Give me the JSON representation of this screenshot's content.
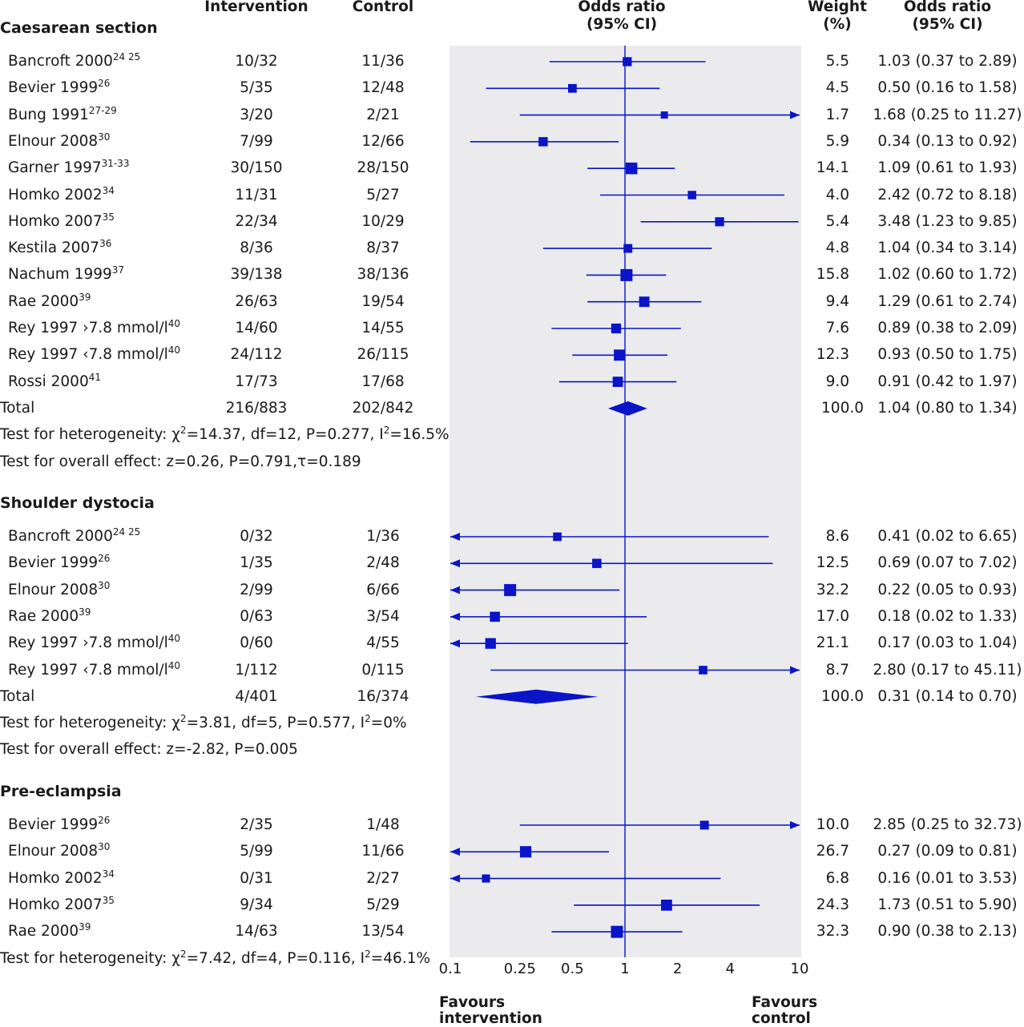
{
  "headers": {
    "intervention": "Intervention",
    "control": "Control",
    "or_line1": "Odds ratio",
    "or_line2": "(95% CI)",
    "weight_line1": "Weight",
    "weight_line2": "(%)",
    "or2_line1": "Odds ratio",
    "or2_line2": "(95% CI)"
  },
  "footer": {
    "favours_left_1": "Favours",
    "favours_left_2": "intervention",
    "favours_right_1": "Favours",
    "favours_right_2": "control"
  },
  "chart_data": {
    "type": "forest",
    "x_scale": "log",
    "xlim": [
      0.1,
      10
    ],
    "x_ticks": [
      {
        "value": 0.1,
        "label": "0.1"
      },
      {
        "value": 0.25,
        "label": "0.25"
      },
      {
        "value": 0.5,
        "label": "0.5"
      },
      {
        "value": 1,
        "label": "1"
      },
      {
        "value": 2,
        "label": "2"
      },
      {
        "value": 4,
        "label": "4"
      },
      {
        "value": 10,
        "label": "10"
      }
    ],
    "reference_line": 1,
    "colors": {
      "marker": "#0a14c8",
      "panel": "#ebebee",
      "text": "#1a1a1a"
    },
    "sections": [
      {
        "title": "Caesarean section",
        "studies": [
          {
            "name": "Bancroft 2000",
            "ref": "24 25",
            "intervention": "10/32",
            "control": "11/36",
            "or": 1.03,
            "lo": 0.37,
            "hi": 2.89,
            "weight": "5.5",
            "ci_text": "1.03 (0.37 to 2.89)"
          },
          {
            "name": "Bevier 1999",
            "ref": "26",
            "intervention": "5/35",
            "control": "12/48",
            "or": 0.5,
            "lo": 0.16,
            "hi": 1.58,
            "weight": "4.5",
            "ci_text": "0.50 (0.16 to 1.58)"
          },
          {
            "name": "Bung 1991",
            "ref": "27-29",
            "intervention": "3/20",
            "control": "2/21",
            "or": 1.68,
            "lo": 0.25,
            "hi": 11.27,
            "weight": "1.7",
            "ci_text": "1.68 (0.25 to 11.27)"
          },
          {
            "name": "Elnour 2008",
            "ref": "30",
            "intervention": "7/99",
            "control": "12/66",
            "or": 0.34,
            "lo": 0.13,
            "hi": 0.92,
            "weight": "5.9",
            "ci_text": "0.34 (0.13 to 0.92)"
          },
          {
            "name": "Garner 1997",
            "ref": "31-33",
            "intervention": "30/150",
            "control": "28/150",
            "or": 1.09,
            "lo": 0.61,
            "hi": 1.93,
            "weight": "14.1",
            "ci_text": "1.09 (0.61 to 1.93)"
          },
          {
            "name": "Homko 2002",
            "ref": "34",
            "intervention": "11/31",
            "control": "5/27",
            "or": 2.42,
            "lo": 0.72,
            "hi": 8.18,
            "weight": "4.0",
            "ci_text": "2.42 (0.72 to 8.18)"
          },
          {
            "name": "Homko 2007",
            "ref": "35",
            "intervention": "22/34",
            "control": "10/29",
            "or": 3.48,
            "lo": 1.23,
            "hi": 9.85,
            "weight": "5.4",
            "ci_text": "3.48 (1.23 to 9.85)"
          },
          {
            "name": "Kestila 2007",
            "ref": "36",
            "intervention": "8/36",
            "control": "8/37",
            "or": 1.04,
            "lo": 0.34,
            "hi": 3.14,
            "weight": "4.8",
            "ci_text": "1.04 (0.34 to 3.14)"
          },
          {
            "name": "Nachum 1999",
            "ref": "37",
            "intervention": "39/138",
            "control": "38/136",
            "or": 1.02,
            "lo": 0.6,
            "hi": 1.72,
            "weight": "15.8",
            "ci_text": "1.02 (0.60 to 1.72)"
          },
          {
            "name": "Rae 2000",
            "ref": "39",
            "intervention": "26/63",
            "control": "19/54",
            "or": 1.29,
            "lo": 0.61,
            "hi": 2.74,
            "weight": "9.4",
            "ci_text": "1.29 (0.61 to 2.74)"
          },
          {
            "name": "Rey 1997 ›7.8 mmol/l",
            "ref": "40",
            "intervention": "14/60",
            "control": "14/55",
            "or": 0.89,
            "lo": 0.38,
            "hi": 2.09,
            "weight": "7.6",
            "ci_text": "0.89 (0.38 to 2.09)"
          },
          {
            "name": "Rey 1997 ‹7.8 mmol/l",
            "ref": "40",
            "intervention": "24/112",
            "control": "26/115",
            "or": 0.93,
            "lo": 0.5,
            "hi": 1.75,
            "weight": "12.3",
            "ci_text": "0.93 (0.50 to 1.75)"
          },
          {
            "name": "Rossi 2000",
            "ref": "41",
            "intervention": "17/73",
            "control": "17/68",
            "or": 0.91,
            "lo": 0.42,
            "hi": 1.97,
            "weight": "9.0",
            "ci_text": "0.91 (0.42 to 1.97)"
          }
        ],
        "total": {
          "label": "Total",
          "intervention": "216/883",
          "control": "202/842",
          "or": 1.04,
          "lo": 0.8,
          "hi": 1.34,
          "weight": "100.0",
          "ci_text": "1.04 (0.80 to 1.34)"
        },
        "heterogeneity": {
          "prefix": "Test for heterogeneity: ",
          "chi": "χ",
          "chi_sup": "2",
          "mid": "=14.37, df=12, P=0.277, I",
          "i_sup": "2",
          "end": "=16.5%"
        },
        "overall": "Test for overall effect: z=0.26, P=0.791,τ=0.189"
      },
      {
        "title": "Shoulder dystocia",
        "studies": [
          {
            "name": "Bancroft 2000",
            "ref": "24 25",
            "intervention": "0/32",
            "control": "1/36",
            "or": 0.41,
            "lo": 0.02,
            "hi": 6.65,
            "weight": "8.6",
            "ci_text": "0.41 (0.02 to 6.65)"
          },
          {
            "name": "Bevier 1999",
            "ref": "26",
            "intervention": "1/35",
            "control": "2/48",
            "or": 0.69,
            "lo": 0.07,
            "hi": 7.02,
            "weight": "12.5",
            "ci_text": "0.69 (0.07 to 7.02)"
          },
          {
            "name": "Elnour 2008",
            "ref": "30",
            "intervention": "2/99",
            "control": "6/66",
            "or": 0.22,
            "lo": 0.05,
            "hi": 0.93,
            "weight": "32.2",
            "ci_text": "0.22 (0.05 to 0.93)"
          },
          {
            "name": "Rae 2000",
            "ref": "39",
            "intervention": "0/63",
            "control": "3/54",
            "or": 0.18,
            "lo": 0.02,
            "hi": 1.33,
            "weight": "17.0",
            "ci_text": "0.18 (0.02 to 1.33)"
          },
          {
            "name": "Rey 1997 ›7.8 mmol/l",
            "ref": "40",
            "intervention": "0/60",
            "control": "4/55",
            "or": 0.17,
            "lo": 0.03,
            "hi": 1.04,
            "weight": "21.1",
            "ci_text": "0.17 (0.03 to 1.04)"
          },
          {
            "name": "Rey 1997 ‹7.8 mmol/l",
            "ref": "40",
            "intervention": "1/112",
            "control": "0/115",
            "or": 2.8,
            "lo": 0.17,
            "hi": 45.11,
            "weight": "8.7",
            "ci_text": "2.80 (0.17 to 45.11)"
          }
        ],
        "total": {
          "label": "Total",
          "intervention": "4/401",
          "control": "16/374",
          "or": 0.31,
          "lo": 0.14,
          "hi": 0.7,
          "weight": "100.0",
          "ci_text": "0.31 (0.14 to 0.70)"
        },
        "heterogeneity": {
          "prefix": "Test for heterogeneity: ",
          "chi": "χ",
          "chi_sup": "2",
          "mid": "=3.81, df=5, P=0.577, I",
          "i_sup": "2",
          "end": "=0%"
        },
        "overall": "Test for overall effect: z=-2.82, P=0.005"
      },
      {
        "title": "Pre-eclampsia",
        "studies": [
          {
            "name": "Bevier 1999",
            "ref": "26",
            "intervention": "2/35",
            "control": "1/48",
            "or": 2.85,
            "lo": 0.25,
            "hi": 32.73,
            "weight": "10.0",
            "ci_text": "2.85 (0.25 to 32.73)"
          },
          {
            "name": "Elnour 2008",
            "ref": "30",
            "intervention": "5/99",
            "control": "11/66",
            "or": 0.27,
            "lo": 0.09,
            "hi": 0.81,
            "weight": "26.7",
            "ci_text": "0.27 (0.09 to 0.81)"
          },
          {
            "name": "Homko 2002",
            "ref": "34",
            "intervention": "0/31",
            "control": "2/27",
            "or": 0.16,
            "lo": 0.01,
            "hi": 3.53,
            "weight": "6.8",
            "ci_text": "0.16 (0.01 to 3.53)"
          },
          {
            "name": "Homko 2007",
            "ref": "35",
            "intervention": "9/34",
            "control": "5/29",
            "or": 1.73,
            "lo": 0.51,
            "hi": 5.9,
            "weight": "24.3",
            "ci_text": "1.73 (0.51 to 5.90)"
          },
          {
            "name": "Rae 2000",
            "ref": "39",
            "intervention": "14/63",
            "control": "13/54",
            "or": 0.9,
            "lo": 0.38,
            "hi": 2.13,
            "weight": "32.3",
            "ci_text": "0.90 (0.38 to 2.13)"
          }
        ],
        "heterogeneity": {
          "prefix": "Test for heterogeneity: ",
          "chi": "χ",
          "chi_sup": "2",
          "mid": "=7.42, df=4, P=0.116, I",
          "i_sup": "2",
          "end": "=46.1%"
        }
      }
    ]
  }
}
